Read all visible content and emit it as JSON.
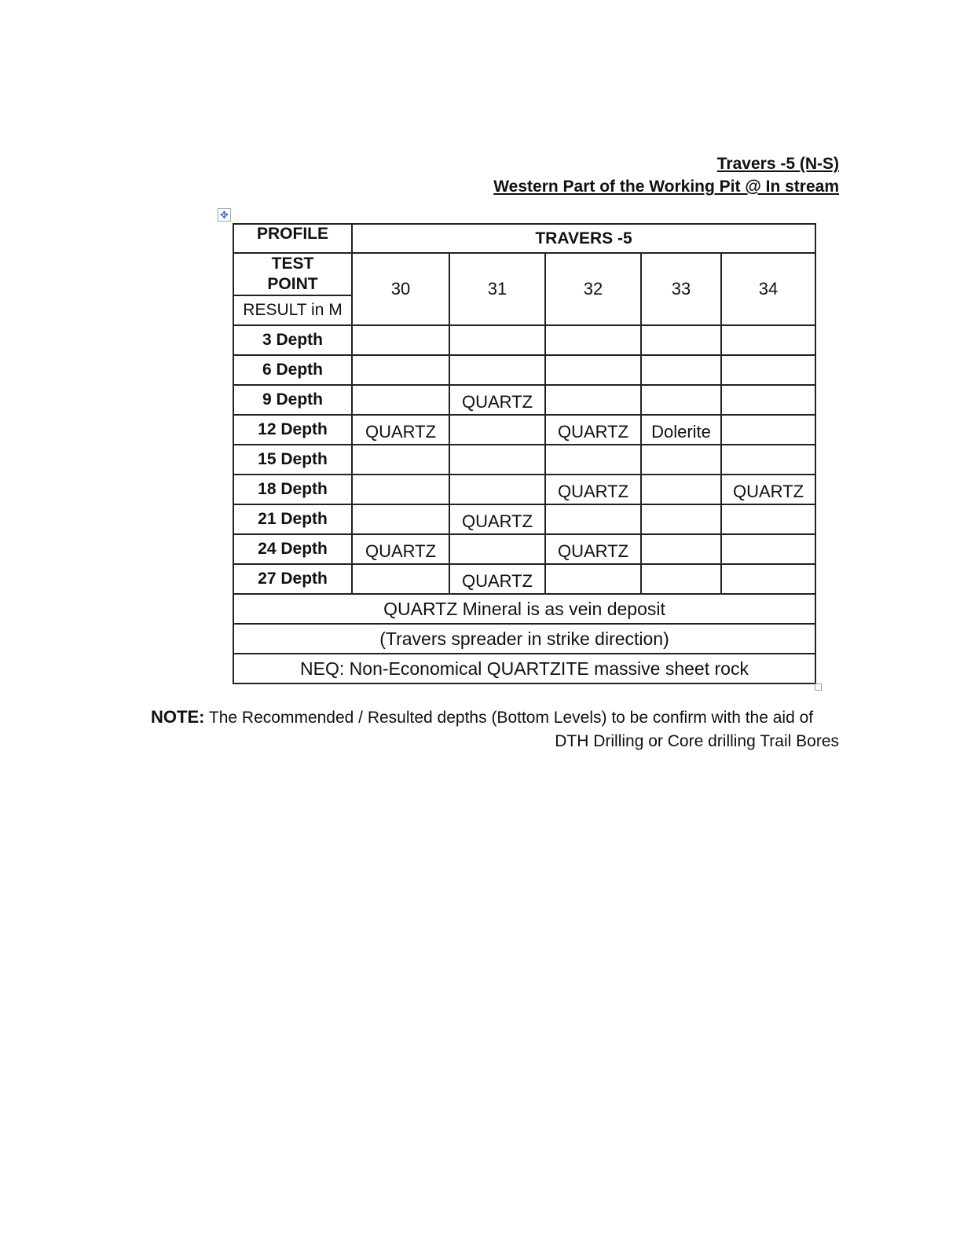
{
  "heading": {
    "line1": "Travers -5 (N-S)",
    "line2": "Western Part of the Working Pit @ In stream"
  },
  "table": {
    "profile_label": "PROFILE",
    "travers_label": "TRAVERS -5",
    "test_point_label": "TEST POINT",
    "result_label": "RESULT in M",
    "test_points": [
      "30",
      "31",
      "32",
      "33",
      "34"
    ],
    "rows": [
      {
        "depth": "3 Depth",
        "cells": [
          "",
          "",
          "",
          "",
          ""
        ]
      },
      {
        "depth": "6  Depth",
        "cells": [
          "",
          "",
          "",
          "",
          ""
        ]
      },
      {
        "depth": "9 Depth",
        "cells": [
          "",
          "QUARTZ",
          "",
          "",
          ""
        ]
      },
      {
        "depth": "12 Depth",
        "cells": [
          "QUARTZ",
          "",
          "QUARTZ",
          "Dolerite",
          ""
        ]
      },
      {
        "depth": "15 Depth",
        "cells": [
          "",
          "",
          "",
          "",
          ""
        ]
      },
      {
        "depth": "18 Depth",
        "cells": [
          "",
          "",
          "QUARTZ",
          "",
          "QUARTZ"
        ]
      },
      {
        "depth": "21 Depth",
        "cells": [
          "",
          "QUARTZ",
          "",
          "",
          ""
        ]
      },
      {
        "depth": "24 Depth",
        "cells": [
          "QUARTZ",
          "",
          "QUARTZ",
          "",
          ""
        ]
      },
      {
        "depth": "27 Depth",
        "cells": [
          "",
          "QUARTZ",
          "",
          "",
          ""
        ]
      }
    ],
    "footer": [
      "QUARTZ  Mineral is as vein deposit",
      "(Travers spreader  in strike direction)",
      "NEQ: Non-Economical QUARTZITE massive sheet rock"
    ]
  },
  "note": {
    "label": "NOTE:",
    "line1": " The Recommended / Resulted depths (Bottom Levels) to be confirm with the aid of",
    "line2": "DTH Drilling or Core drilling Trail Bores"
  }
}
